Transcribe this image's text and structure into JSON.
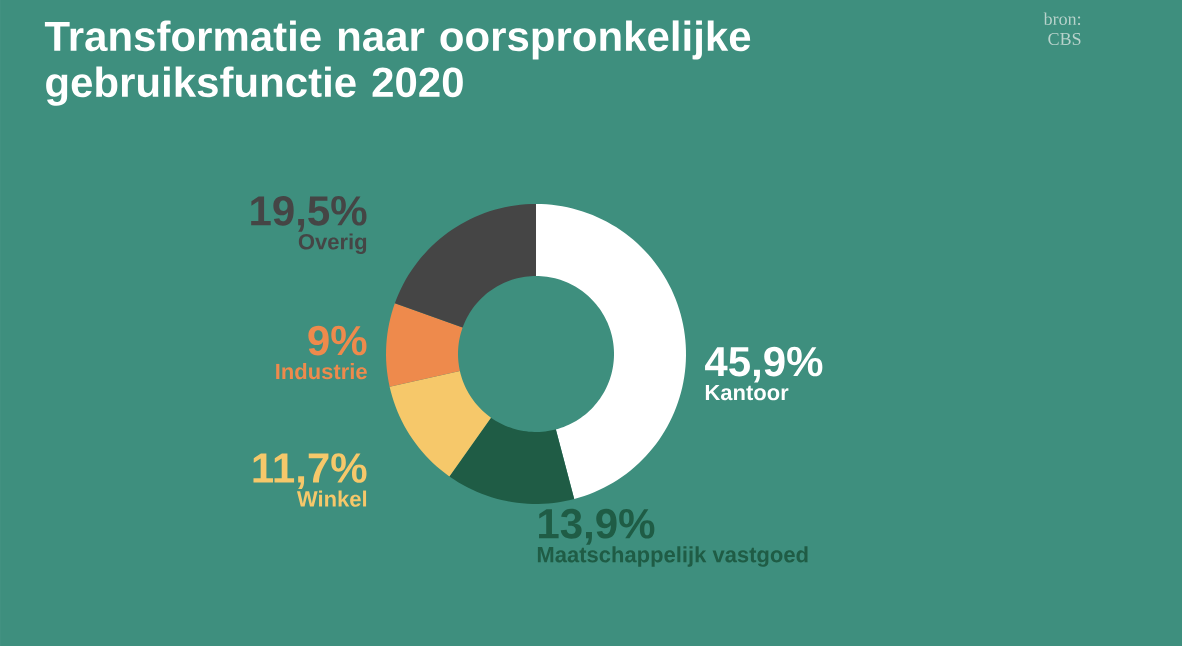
{
  "chart_data": {
    "type": "donut",
    "title": "Transformatie naar oorspronkelijke gebruiksfunctie 2020",
    "annotations": [
      "bron: CBS"
    ],
    "categories": [
      "Kantoor",
      "Maatschappelijk vastgoed",
      "Winkel",
      "Industrie",
      "Overig"
    ],
    "values": [
      45.9,
      13.9,
      11.7,
      9,
      19.5
    ],
    "value_labels": [
      "45,9%",
      "13,9%",
      "11,7%",
      "9%",
      "19,5%"
    ],
    "colors": [
      "#ffffff",
      "#1f5c45",
      "#f6c86a",
      "#ee8a4c",
      "#454545"
    ]
  }
}
